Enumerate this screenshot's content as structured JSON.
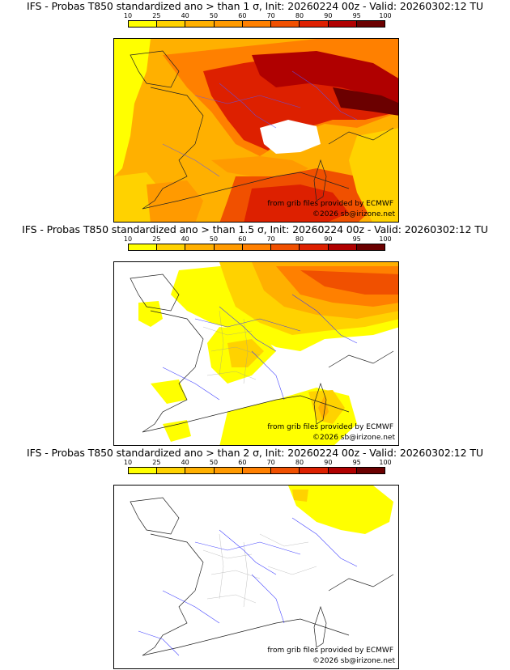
{
  "legend": {
    "ticks": [
      "10",
      "25",
      "40",
      "50",
      "60",
      "70",
      "80",
      "90",
      "95",
      "100"
    ],
    "colors": [
      "#ffff00",
      "#ffd200",
      "#ffb000",
      "#ff9a00",
      "#ff8000",
      "#f05000",
      "#dd2000",
      "#b00000",
      "#6b0000"
    ]
  },
  "panels": [
    {
      "title": "IFS - Probas T850  standardized ano > than 1 σ, Init: 20260224 00z - Valid: 20260302:12 TU",
      "credit_source": "from grib files provided by ECMWF",
      "credit_copyright": "©2026 sb@irizone.net"
    },
    {
      "title": "IFS - Probas T850  standardized ano > than 1.5 σ, Init: 20260224 00z - Valid: 20260302:12 TU",
      "credit_source": "from grib files provided by ECMWF",
      "credit_copyright": "©2026 sb@irizone.net"
    },
    {
      "title": "IFS - Probas T850  standardized ano > than 2 σ, Init: 20260224 00z - Valid: 20260302:12 TU",
      "credit_source": "from grib files provided by ECMWF",
      "credit_copyright": "©2026 sb@irizone.net"
    }
  ]
}
